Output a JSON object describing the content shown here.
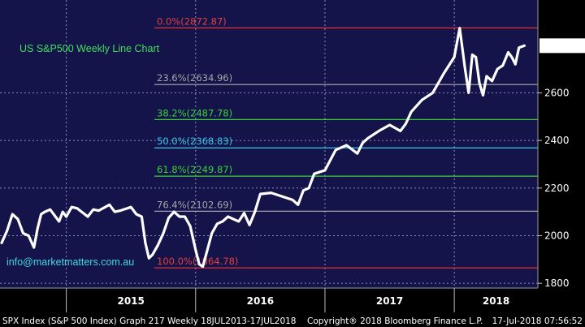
{
  "chart_data": {
    "type": "line",
    "title": "US S&P500 Weekly Line Chart",
    "watermark": "info@marketmatters.com.au",
    "ylim": [
      1780,
      2990
    ],
    "y_ticks": [
      1800,
      2000,
      2200,
      2400,
      2600
    ],
    "last_value_label": "2798.43",
    "x_labels": [
      "2015",
      "2016",
      "2017",
      "2018"
    ],
    "x_dividers": [
      "2015-01",
      "2016-01",
      "2017-01",
      "2018-01"
    ],
    "x_range": [
      "2014-07",
      "2018-08"
    ],
    "fib_levels": [
      {
        "label": "0.0%(2872.87)",
        "value": 2872.87,
        "color": "#e03030",
        "label_color": "#e04040"
      },
      {
        "label": "23.6%(2634.96)",
        "value": 2634.96,
        "color": "#b0b0b0",
        "label_color": "#a8a8a8"
      },
      {
        "label": "38.2%(2487.78)",
        "value": 2487.78,
        "color": "#3ad23a",
        "label_color": "#3ad23a"
      },
      {
        "label": "50.0%(2368.83)",
        "value": 2368.83,
        "color": "#36c8e8",
        "label_color": "#36c8e8"
      },
      {
        "label": "61.8%(2249.87)",
        "value": 2249.87,
        "color": "#3ad23a",
        "label_color": "#3ad23a"
      },
      {
        "label": "76.4%(2102.69)",
        "value": 2102.69,
        "color": "#b0b0b0",
        "label_color": "#a8a8a8"
      },
      {
        "label": "100.0%(1864.78)",
        "value": 1864.78,
        "color": "#e03030",
        "label_color": "#e04040"
      }
    ],
    "series": [
      {
        "color": "#ffffff",
        "x": [
          "2014-07",
          "2014-07",
          "2014-08",
          "2014-08",
          "2014-09",
          "2014-09",
          "2014-10",
          "2014-10",
          "2014-10",
          "2014-11",
          "2014-11",
          "2014-12",
          "2014-12",
          "2014-12",
          "2015-01",
          "2015-01",
          "2015-02",
          "2015-03",
          "2015-03",
          "2015-04",
          "2015-05",
          "2015-05",
          "2015-06",
          "2015-07",
          "2015-07",
          "2015-08",
          "2015-08",
          "2015-08",
          "2015-09",
          "2015-09",
          "2015-10",
          "2015-10",
          "2015-11",
          "2015-11",
          "2015-12",
          "2015-12",
          "2016-01",
          "2016-01",
          "2016-01",
          "2016-02",
          "2016-02",
          "2016-03",
          "2016-03",
          "2016-04",
          "2016-05",
          "2016-05",
          "2016-06",
          "2016-06",
          "2016-07",
          "2016-08",
          "2016-09",
          "2016-10",
          "2016-10",
          "2016-11",
          "2016-11",
          "2016-12",
          "2017-01",
          "2017-02",
          "2017-03",
          "2017-04",
          "2017-04",
          "2017-05",
          "2017-06",
          "2017-07",
          "2017-08",
          "2017-08",
          "2017-09",
          "2017-10",
          "2017-11",
          "2017-12",
          "2018-01",
          "2018-01",
          "2018-02",
          "2018-02",
          "2018-02",
          "2018-03",
          "2018-03",
          "2018-03",
          "2018-04",
          "2018-04",
          "2018-05",
          "2018-05",
          "2018-06",
          "2018-06",
          "2018-06",
          "2018-07",
          "2018-07"
        ],
        "y": [
          1970,
          2020,
          2090,
          2070,
          2010,
          2000,
          1950,
          2030,
          2090,
          2100,
          2110,
          2080,
          2060,
          2100,
          2080,
          2120,
          2115,
          2080,
          2110,
          2105,
          2130,
          2100,
          2105,
          2120,
          2090,
          2080,
          1970,
          1905,
          1920,
          1960,
          2010,
          2075,
          2100,
          2080,
          2080,
          2040,
          1940,
          1880,
          1870,
          1925,
          2010,
          2050,
          2060,
          2080,
          2060,
          2095,
          2045,
          2100,
          2175,
          2180,
          2165,
          2150,
          2130,
          2190,
          2200,
          2260,
          2275,
          2360,
          2380,
          2345,
          2390,
          2410,
          2440,
          2465,
          2440,
          2470,
          2520,
          2570,
          2600,
          2680,
          2750,
          2872,
          2700,
          2600,
          2760,
          2750,
          2640,
          2590,
          2670,
          2650,
          2700,
          2715,
          2770,
          2750,
          2720,
          2790,
          2798
        ]
      }
    ]
  },
  "footer": {
    "text": "SPX Index (S&P 500 Index) Graph 217  Weekly 18JUL2013-17JUL2018",
    "copyright": "Copyright® 2018 Bloomberg Finance L.P.",
    "timestamp": "17-Jul-2018 07:56:52"
  }
}
